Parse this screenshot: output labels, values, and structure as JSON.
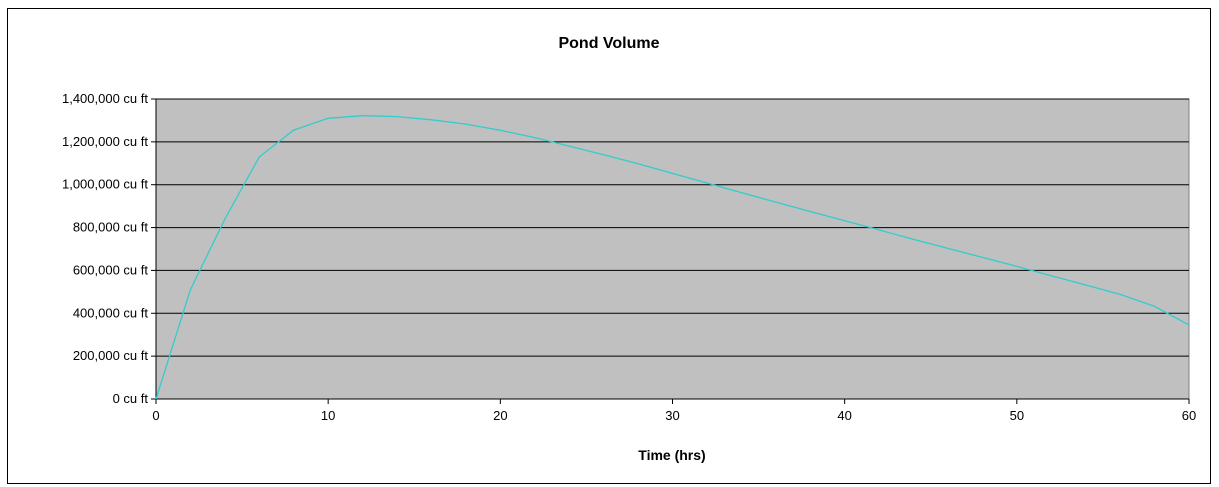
{
  "chart_data": {
    "type": "line",
    "title": "Pond Volume",
    "xlabel": "Time (hrs)",
    "ylabel": "",
    "xlim": [
      0,
      60
    ],
    "ylim": [
      0,
      1400000
    ],
    "x_ticks": [
      0,
      10,
      20,
      30,
      40,
      50,
      60
    ],
    "y_ticks": [
      0,
      200000,
      400000,
      600000,
      800000,
      1000000,
      1200000,
      1400000
    ],
    "y_tick_labels": [
      "0 cu ft",
      "200,000 cu ft",
      "400,000 cu ft",
      "600,000 cu ft",
      "800,000 cu ft",
      "1,000,000 cu ft",
      "1,200,000 cu ft",
      "1,400,000 cu ft"
    ],
    "x_tick_labels": [
      "0",
      "10",
      "20",
      "30",
      "40",
      "50",
      "60"
    ],
    "grid": "horizontal",
    "legend": "none",
    "plot_background": "#c0c0c0",
    "series": [
      {
        "color": "#33cccc",
        "x": [
          0,
          2,
          4,
          6,
          8,
          10,
          12,
          14,
          16,
          18,
          20,
          22,
          24,
          26,
          28,
          30,
          32,
          34,
          36,
          38,
          40,
          42,
          44,
          46,
          48,
          50,
          52,
          54,
          56,
          58,
          60
        ],
        "values": [
          0,
          510000,
          840000,
          1130000,
          1255000,
          1310000,
          1322000,
          1318000,
          1303000,
          1283000,
          1254000,
          1220000,
          1180000,
          1140000,
          1098000,
          1053000,
          1008000,
          963000,
          919000,
          875000,
          832000,
          789000,
          745000,
          703000,
          661000,
          619000,
          575000,
          532000,
          488000,
          432000,
          345000
        ]
      }
    ]
  }
}
